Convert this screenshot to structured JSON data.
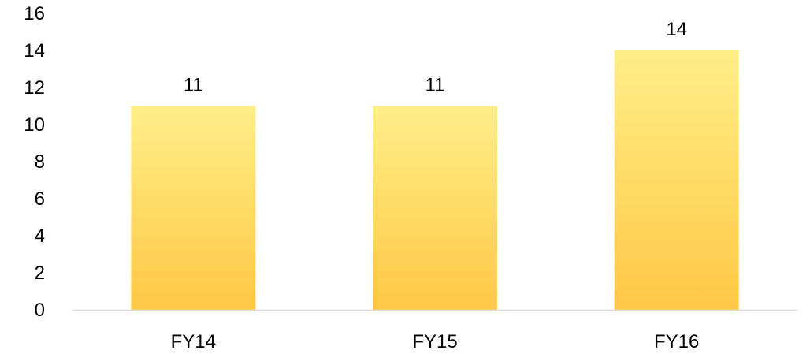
{
  "chart_data": {
    "type": "bar",
    "categories": [
      "FY14",
      "FY15",
      "FY16"
    ],
    "values": [
      11,
      11,
      14
    ],
    "ylim": [
      0,
      16
    ],
    "yticks": [
      0,
      2,
      4,
      6,
      8,
      10,
      12,
      14,
      16
    ],
    "data_labels": [
      "11",
      "11",
      "14"
    ],
    "grid": false,
    "legend": "none",
    "colors": {
      "bar_top": "#FFEE88",
      "bar_bottom": "#FFC845",
      "axis_line": "#D9D9D9",
      "text": "#000000"
    }
  }
}
